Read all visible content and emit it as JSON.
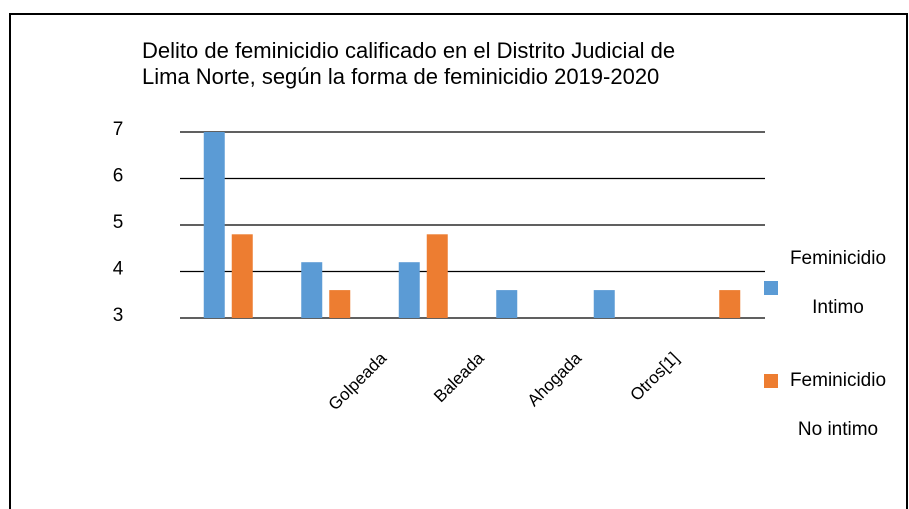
{
  "chart_data": {
    "type": "bar",
    "title": [
      "Delito de feminicidio calificado en el Distrito Judicial de",
      "Lima Norte, según la forma de feminicidio 2019-2020"
    ],
    "categories": [
      null,
      "Golpeada",
      "Baleada",
      "Ahogada",
      "Otros[1]",
      null
    ],
    "series": [
      {
        "name": "Feminicidio Intimo",
        "color": "#5b9bd5",
        "values": [
          7,
          4.2,
          4.2,
          3.6,
          3.6,
          null
        ]
      },
      {
        "name": "Feminicidio No intimo",
        "color": "#ed7d31",
        "values": [
          4.8,
          3.6,
          4.8,
          null,
          null,
          3.6
        ]
      }
    ],
    "ylim": [
      3,
      7
    ],
    "yticks": [
      3,
      4,
      5,
      6,
      7
    ],
    "grid": true,
    "legend": "right"
  }
}
